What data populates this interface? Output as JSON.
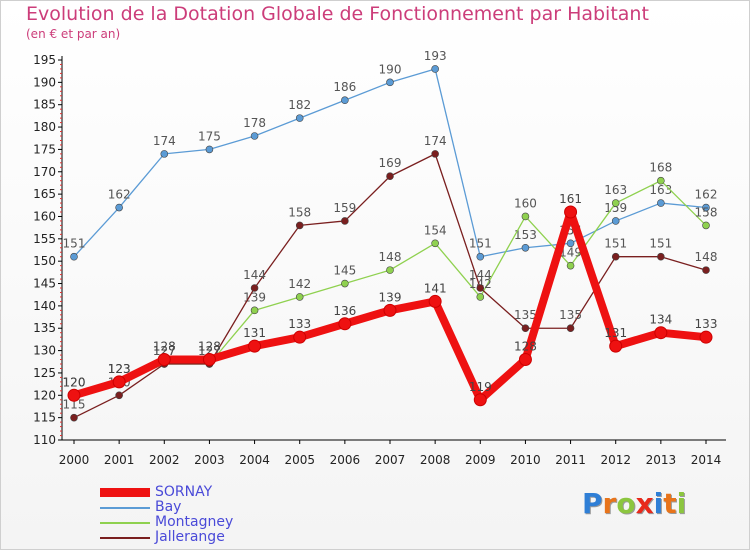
{
  "chart_data": {
    "type": "line",
    "title": "Evolution de la Dotation Globale de Fonctionnement par Habitant",
    "subtitle": "(en € et par an)",
    "xlabel": "",
    "ylabel": "",
    "x": [
      "2000",
      "2001",
      "2002",
      "2003",
      "2004",
      "2005",
      "2006",
      "2007",
      "2008",
      "2009",
      "2010",
      "2011",
      "2012",
      "2013",
      "2014"
    ],
    "ylim": [
      110,
      195
    ],
    "ytick_step": 5,
    "grid": false,
    "legend_position": "bottom-left",
    "series": [
      {
        "name": "Bay",
        "color": "#5b9bd5",
        "values": [
          151,
          162,
          174,
          175,
          178,
          182,
          186,
          190,
          193,
          151,
          153,
          154,
          159,
          163,
          162
        ],
        "labels": [
          "151",
          "162",
          "174",
          "175",
          "178",
          "182",
          "186",
          "190",
          "193",
          "151",
          "153",
          "154",
          "159",
          "163",
          "162"
        ]
      },
      {
        "name": "Montagney",
        "color": "#8fd14f",
        "values": [
          120,
          123,
          127,
          127,
          139,
          142,
          145,
          148,
          154,
          142,
          160,
          149,
          163,
          168,
          158
        ],
        "labels": [
          "120",
          "123",
          "127",
          "127",
          "139",
          "142",
          "145",
          "148",
          "154",
          "142",
          "160",
          "149",
          "163",
          "168",
          "158"
        ]
      },
      {
        "name": "Jallerange",
        "color": "#7a1f1f",
        "values": [
          115,
          120,
          127,
          127,
          144,
          158,
          159,
          169,
          174,
          144,
          135,
          135,
          151,
          151,
          148
        ],
        "labels": [
          "115",
          "120",
          "127",
          "127",
          "144",
          "158",
          "159",
          "169",
          "174",
          "144",
          "135",
          "135",
          "151",
          "151",
          "148"
        ]
      },
      {
        "name": "SORNAY",
        "color": "#ee1111",
        "values": [
          120,
          123,
          128,
          128,
          131,
          133,
          136,
          139,
          141,
          119,
          128,
          161,
          131,
          134,
          133
        ],
        "labels": [
          "120",
          "123",
          "128",
          "128",
          "131",
          "133",
          "136",
          "139",
          "141",
          "119",
          "128",
          "161",
          "131",
          "134",
          "133"
        ]
      }
    ],
    "legend_order": [
      "SORNAY",
      "Bay",
      "Montagney",
      "Jallerange"
    ]
  },
  "logo": {
    "letters": [
      "P",
      "r",
      "o",
      "x",
      "i",
      "t",
      "i"
    ],
    "colors": [
      "#2f7fd6",
      "#e8741b",
      "#8cc63f",
      "#e8291b",
      "#2f7fd6",
      "#e8741b",
      "#8cc63f"
    ]
  }
}
